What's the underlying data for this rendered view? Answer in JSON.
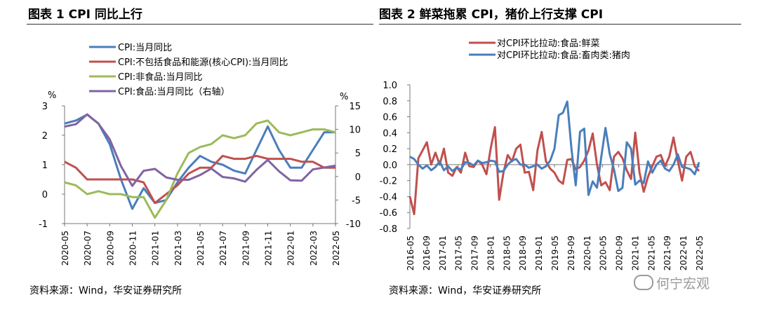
{
  "left": {
    "title": "图表 1    CPI 同比上行",
    "source": "资料来源：Wind，华安证券研究所",
    "chart_data": {
      "type": "line",
      "categories": [
        "2020-05",
        "2020-06",
        "2020-07",
        "2020-08",
        "2020-09",
        "2020-10",
        "2020-11",
        "2020-12",
        "2021-01",
        "2021-02",
        "2021-03",
        "2021-04",
        "2021-05",
        "2021-06",
        "2021-07",
        "2021-08",
        "2021-09",
        "2021-10",
        "2021-11",
        "2021-12",
        "2022-01",
        "2022-02",
        "2022-03",
        "2022-04",
        "2022-05"
      ],
      "x_tick_labels": [
        "2020-05",
        "2020-07",
        "2020-09",
        "2020-11",
        "2021-01",
        "2021-03",
        "2021-05",
        "2021-07",
        "2021-09",
        "2021-11",
        "2022-01",
        "2022-03",
        "2022-05"
      ],
      "left_axis": {
        "unit": "%",
        "ylim": [
          -1,
          3
        ],
        "ticks": [
          "-1",
          "0",
          "1",
          "2",
          "3"
        ]
      },
      "right_axis": {
        "unit": "%",
        "ylim": [
          -10,
          15
        ],
        "ticks": [
          "-10",
          "-5",
          "0",
          "5",
          "10",
          "15"
        ]
      },
      "series": [
        {
          "name": "CPI:当月同比",
          "axis": "left",
          "color": "#4a7ebb",
          "values": [
            2.4,
            2.5,
            2.7,
            2.4,
            1.7,
            0.5,
            -0.5,
            0.2,
            -0.3,
            -0.2,
            0.4,
            0.9,
            1.3,
            1.1,
            1.0,
            0.8,
            0.7,
            1.5,
            2.3,
            1.5,
            0.9,
            0.9,
            1.5,
            2.1,
            2.1
          ]
        },
        {
          "name": "CPI:不包括食品和能源(核心CPI):当月同比",
          "axis": "left",
          "color": "#c0504d",
          "values": [
            1.1,
            0.9,
            0.5,
            0.5,
            0.5,
            0.5,
            0.5,
            0.4,
            -0.3,
            0.0,
            0.3,
            0.7,
            0.9,
            0.9,
            1.3,
            1.2,
            1.2,
            1.3,
            1.2,
            1.2,
            1.2,
            1.1,
            1.1,
            0.9,
            0.9
          ]
        },
        {
          "name": "CPI:非食品:当月同比",
          "axis": "left",
          "color": "#9bbb59",
          "values": [
            0.4,
            0.3,
            0.0,
            0.1,
            0.0,
            0.0,
            -0.1,
            -0.1,
            -0.8,
            -0.2,
            0.7,
            1.4,
            1.6,
            1.7,
            2.0,
            1.9,
            2.0,
            2.4,
            2.5,
            2.1,
            2.0,
            2.1,
            2.2,
            2.2,
            2.1
          ]
        },
        {
          "name": "CPI:食品:当月同比（右轴）",
          "axis": "right",
          "color": "#8064a2",
          "values": [
            10.6,
            11.1,
            13.2,
            11.2,
            7.9,
            2.2,
            -2.0,
            1.2,
            1.6,
            -0.2,
            -0.7,
            -0.7,
            0.3,
            1.7,
            -0.1,
            -0.4,
            -1.1,
            1.4,
            3.5,
            1.1,
            -0.8,
            -0.9,
            1.5,
            1.9,
            2.3
          ]
        }
      ]
    }
  },
  "right": {
    "title": "图表 2  鲜菜拖累 CPI，猪价上行支撑 CPI",
    "source": "资料来源：Wind，华安证券研究所",
    "watermark": "何宁宏观",
    "chart_data": {
      "type": "line",
      "x_tick_labels": [
        "2016-05",
        "2016-09",
        "2017-01",
        "2017-05",
        "2017-09",
        "2018-01",
        "2018-05",
        "2018-09",
        "2019-01",
        "2019-05",
        "2019-09",
        "2020-01",
        "2020-05",
        "2020-09",
        "2021-01",
        "2021-05",
        "2021-09",
        "2022-01",
        "2022-05"
      ],
      "ylim": [
        -0.8,
        1.0
      ],
      "y_ticks": [
        "-0.8",
        "-0.6",
        "-0.4",
        "-0.2",
        "0.0",
        "0.2",
        "0.4",
        "0.6",
        "0.8",
        "1.0"
      ],
      "series": [
        {
          "name": "对CPI环比拉动:食品:鲜菜",
          "color": "#c0504d",
          "values": [
            -0.4,
            -0.62,
            0.08,
            0.18,
            0.28,
            0.0,
            0.15,
            0.0,
            0.2,
            -0.1,
            -0.14,
            -0.03,
            -0.1,
            0.15,
            -0.02,
            -0.03,
            0.05,
            0.0,
            -0.12,
            0.2,
            0.47,
            -0.44,
            -0.1,
            0.12,
            0.04,
            0.2,
            0.25,
            -0.1,
            -0.09,
            -0.32,
            0.18,
            0.41,
            0.04,
            -0.05,
            -0.1,
            -0.2,
            -0.24,
            0.06,
            0.07,
            -0.06,
            -0.03,
            0.05,
            0.18,
            0.39,
            0.0,
            -0.26,
            -0.22,
            -0.32,
            0.1,
            0.16,
            0.08,
            -0.07,
            -0.18,
            0.4,
            -0.1,
            -0.34,
            -0.15,
            -0.02,
            0.1,
            0.12,
            -0.02,
            0.1,
            0.34,
            0.05,
            -0.2,
            0.1,
            0.16,
            -0.02,
            -0.08
          ]
        },
        {
          "name": "对CPI环比拉动:食品:畜肉类:猪肉",
          "color": "#4a7ebb",
          "values": [
            0.1,
            0.07,
            0.0,
            -0.05,
            -0.01,
            -0.07,
            -0.03,
            0.04,
            -0.07,
            -0.02,
            -0.08,
            -0.04,
            -0.06,
            0.03,
            0.02,
            -0.01,
            0.05,
            0.02,
            0.03,
            0.05,
            0.04,
            -0.09,
            -0.08,
            0.0,
            0.05,
            0.07,
            0.0,
            0.0,
            -0.04,
            -0.02,
            0.0,
            -0.05,
            -0.02,
            0.05,
            0.2,
            0.62,
            0.65,
            0.79,
            0.2,
            -0.26,
            0.41,
            0.45,
            -0.38,
            -0.21,
            -0.29,
            0.09,
            0.46,
            0.13,
            -0.06,
            -0.33,
            -0.29,
            0.28,
            0.2,
            -0.25,
            -0.2,
            -0.23,
            0.04,
            -0.1,
            0.0,
            0.05,
            -0.05,
            -0.08,
            0.0,
            0.13,
            -0.03,
            -0.04,
            -0.06,
            -0.12,
            0.03
          ]
        }
      ]
    }
  }
}
